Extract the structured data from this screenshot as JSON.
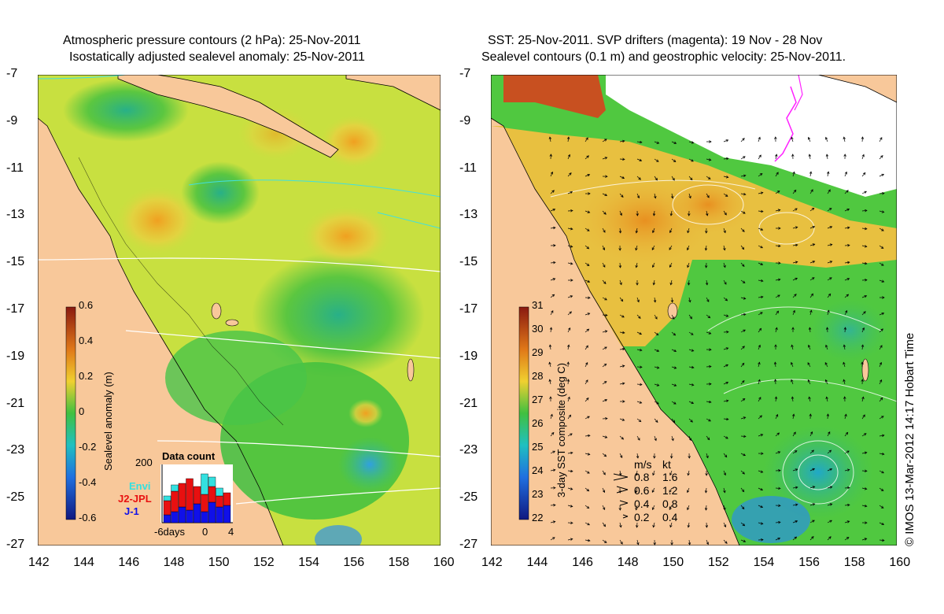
{
  "left_panel": {
    "title_line1": "Atmospheric pressure contours (2 hPa): 25-Nov-2011",
    "title_line2": "Isostatically adjusted sealevel anomaly: 25-Nov-2011",
    "y_ticks": [
      "-7",
      "-9",
      "-11",
      "-13",
      "-15",
      "-17",
      "-19",
      "-21",
      "-23",
      "-25",
      "-27"
    ],
    "x_ticks": [
      "142",
      "144",
      "146",
      "148",
      "150",
      "152",
      "154",
      "156",
      "158",
      "160"
    ],
    "colorbar_label": "Sealevel anomaly (m)",
    "colorbar_ticks": [
      "0.6",
      "0.4",
      "0.2",
      "0",
      "-0.2",
      "-0.4",
      "-0.6"
    ],
    "histogram": {
      "title": "Data count",
      "ymax_label": "200",
      "x_labels": [
        "-6days",
        "0",
        "4"
      ],
      "legend": [
        {
          "name": "Envi",
          "color": "#33e0e0"
        },
        {
          "name": "J2-JPL",
          "color": "#e81010"
        },
        {
          "name": "J-1",
          "color": "#1010e8"
        }
      ]
    }
  },
  "right_panel": {
    "title_line1": "SST: 25-Nov-2011. SVP drifters (magenta): 19 Nov - 28 Nov",
    "title_line2": "Sealevel contours (0.1 m) and geostrophic velocity: 25-Nov-2011.",
    "y_ticks": [
      "-7",
      "-9",
      "-11",
      "-13",
      "-15",
      "-17",
      "-19",
      "-21",
      "-23",
      "-25",
      "-27"
    ],
    "x_ticks": [
      "142",
      "144",
      "146",
      "148",
      "150",
      "152",
      "154",
      "156",
      "158",
      "160"
    ],
    "colorbar_label": "3-day SST composite (deg C)",
    "colorbar_ticks": [
      "31",
      "30",
      "29",
      "28",
      "27",
      "26",
      "25",
      "24",
      "23",
      "22"
    ],
    "velocity_legend": {
      "header_ms": "m/s",
      "header_kt": "kt",
      "rows": [
        {
          "ms": "0.8",
          "kt": "1.6"
        },
        {
          "ms": "0.6",
          "kt": "1.2"
        },
        {
          "ms": "0.4",
          "kt": "0.8"
        },
        {
          "ms": "0.2",
          "kt": "0.4"
        }
      ]
    }
  },
  "credit": "© IMOS 13-Mar-2012 14:17 Hobart Time",
  "colors": {
    "land": "#f8c89a",
    "sea_green": "#3cc83c",
    "sea_yellow": "#e0e040",
    "sst_orange": "#e8a030"
  }
}
